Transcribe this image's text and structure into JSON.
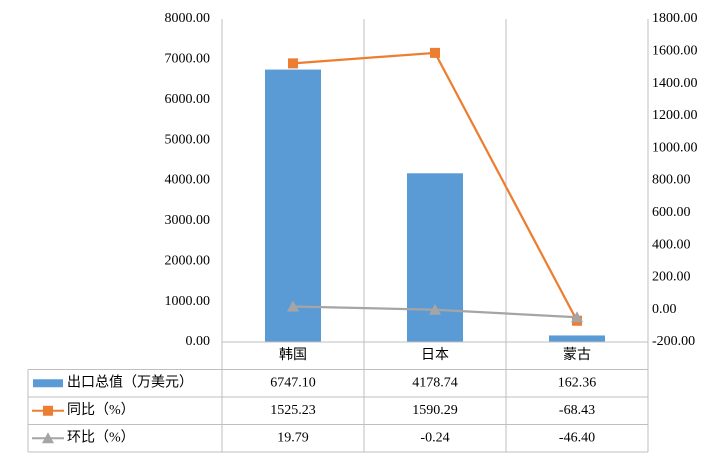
{
  "chart_data": {
    "type": "combo",
    "categories": [
      "韩国",
      "日本",
      "蒙古"
    ],
    "series": [
      {
        "name": "出口总值（万美元）",
        "type": "bar",
        "color": "#5b9bd5",
        "values": [
          6747.1,
          4178.74,
          162.36
        ],
        "value_labels": [
          "6747.10",
          "4178.74",
          "162.36"
        ]
      },
      {
        "name": "同比（%）",
        "type": "line",
        "axis": "y2",
        "marker": "square",
        "color": "#ed7d31",
        "values": [
          1525.23,
          1590.29,
          -68.43
        ],
        "value_labels": [
          "1525.23",
          "1590.29",
          "-68.43"
        ]
      },
      {
        "name": "环比（%）",
        "type": "line",
        "axis": "y2",
        "marker": "triangle",
        "color": "#a5a5a5",
        "values": [
          19.79,
          -0.24,
          -46.4
        ],
        "value_labels": [
          "19.79",
          "-0.24",
          "-46.40"
        ]
      }
    ],
    "ylim": [
      0,
      8000
    ],
    "yticks": [
      {
        "value": 0,
        "label": "0.00"
      },
      {
        "value": 1000,
        "label": "1000.00"
      },
      {
        "value": 2000,
        "label": "2000.00"
      },
      {
        "value": 3000,
        "label": "3000.00"
      },
      {
        "value": 4000,
        "label": "4000.00"
      },
      {
        "value": 5000,
        "label": "5000.00"
      },
      {
        "value": 6000,
        "label": "6000.00"
      },
      {
        "value": 7000,
        "label": "7000.00"
      },
      {
        "value": 8000,
        "label": "8000.00"
      }
    ],
    "y2lim": [
      -200,
      1800
    ],
    "y2ticks": [
      {
        "value": -200,
        "label": "-200.00"
      },
      {
        "value": 0,
        "label": "0.00"
      },
      {
        "value": 200,
        "label": "200.00"
      },
      {
        "value": 400,
        "label": "400.00"
      },
      {
        "value": 600,
        "label": "600.00"
      },
      {
        "value": 800,
        "label": "800.00"
      },
      {
        "value": 1000,
        "label": "1000.00"
      },
      {
        "value": 1200,
        "label": "1200.00"
      },
      {
        "value": 1400,
        "label": "1400.00"
      },
      {
        "value": 1600,
        "label": "1600.00"
      },
      {
        "value": 1800,
        "label": "1800.00"
      }
    ],
    "grid": false,
    "data_table": true
  }
}
